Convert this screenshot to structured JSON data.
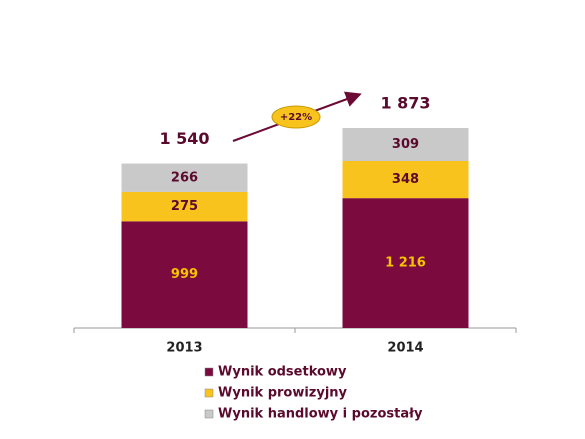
{
  "chart_data": {
    "type": "stacked_bar",
    "categories": [
      "2013",
      "2014"
    ],
    "series": [
      {
        "name": "Wynik odsetkowy",
        "color": "#7b0a3f",
        "label_color": "#f5c400",
        "values": [
          999,
          1216
        ],
        "value_labels": [
          "999",
          "1 216"
        ]
      },
      {
        "name": "Wynik prowizyjny",
        "color": "#f7c31c",
        "label_color": "#5a0a2c",
        "values": [
          275,
          348
        ]
      },
      {
        "name": "Wynik handlowy i pozostały",
        "color": "#c9c9c9",
        "label_color": "#5a0a2c",
        "values": [
          266,
          309
        ]
      }
    ],
    "totals": [
      1540,
      1873
    ],
    "total_labels": [
      "1 540",
      "1 873"
    ],
    "annotation": "+22%"
  }
}
